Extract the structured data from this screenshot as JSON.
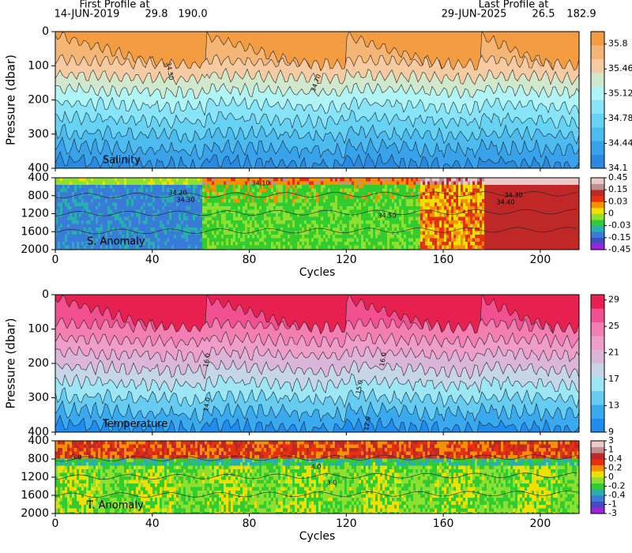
{
  "header": {
    "first_title": "First Profile at",
    "first_date": "14-JUN-2019",
    "first_lat": "29.8",
    "first_lon": "190.0",
    "last_title": "Last Profile at",
    "last_date": "29-JUN-2025",
    "last_lat": "26.5",
    "last_lon": "182.9"
  },
  "chart_data": [
    {
      "type": "contour",
      "label": "Salinity",
      "ylabel": "Pressure (dbar)",
      "ylim": [
        0,
        400
      ],
      "yticks": [
        0,
        100,
        200,
        300,
        400
      ],
      "xlim": [
        0,
        216
      ],
      "xticks": [
        0,
        40,
        80,
        120,
        160,
        200
      ],
      "colorbar": {
        "colors": [
          "#2a8ae0",
          "#38a2ea",
          "#4cbcf0",
          "#66d2f4",
          "#88e4f8",
          "#b0f4f6",
          "#d2e8cc",
          "#f6cba2",
          "#f5b575",
          "#f49c42"
        ],
        "ticks": [
          34.1,
          34.44,
          34.78,
          35.12,
          35.46,
          35.8
        ]
      },
      "annotations": [
        "34.50",
        "34.70",
        "34.50",
        "34.40"
      ]
    },
    {
      "type": "anomaly",
      "label": "S. Anomaly",
      "ylim": [
        400,
        2000
      ],
      "yticks": [
        400,
        800,
        1200,
        1600,
        2000
      ],
      "xlim": [
        0,
        216
      ],
      "xticks": [
        0,
        40,
        80,
        120,
        160,
        200
      ],
      "xlabel": "Cycles",
      "colorbar": {
        "colors": [
          "#a020e0",
          "#4a48c4",
          "#3a7ad8",
          "#28b0b0",
          "#30cc30",
          "#8ee030",
          "#f0e000",
          "#f59000",
          "#e83010",
          "#c02828",
          "#c09090",
          "#ecc8c8"
        ],
        "ticks": [
          -0.45,
          -0.15,
          -0.03,
          0,
          0.03,
          0.15,
          0.45
        ]
      },
      "annotations": [
        "34.10",
        "34.20",
        "34.30",
        "34.50",
        "34.30",
        "34.40"
      ]
    },
    {
      "type": "contour",
      "label": "Temperature",
      "ylabel": "Pressure (dbar)",
      "ylim": [
        0,
        400
      ],
      "yticks": [
        0,
        100,
        200,
        300,
        400
      ],
      "xlim": [
        0,
        216
      ],
      "xticks": [
        0,
        40,
        80,
        120,
        160,
        200
      ],
      "colorbar": {
        "colors": [
          "#1e8cf0",
          "#3aaaf0",
          "#66ccf2",
          "#9ce6f6",
          "#c6d6e8",
          "#dcb6d8",
          "#ee9ec8",
          "#f27eb2",
          "#f25090",
          "#e82050"
        ],
        "ticks": [
          9,
          13,
          17,
          21,
          25,
          29
        ]
      },
      "annotations": [
        "16.0",
        "14.0",
        "16.0",
        "15.0",
        "12.0"
      ]
    },
    {
      "type": "anomaly",
      "label": "T. Anomaly",
      "ylim": [
        400,
        2000
      ],
      "yticks": [
        400,
        800,
        1200,
        1600,
        2000
      ],
      "xlim": [
        0,
        216
      ],
      "xticks": [
        0,
        40,
        80,
        120,
        160,
        200
      ],
      "xlabel": "Cycles",
      "colorbar": {
        "colors": [
          "#a020e0",
          "#4a48c4",
          "#3a7ad8",
          "#28b0b0",
          "#30cc30",
          "#8ee030",
          "#f0e000",
          "#f59000",
          "#e83010",
          "#c02828",
          "#c09090",
          "#ecc8c8"
        ],
        "ticks": [
          -3,
          -1,
          -0.4,
          -0.2,
          0,
          0.2,
          0.4,
          1,
          3
        ]
      },
      "annotations": [
        "5.0",
        "4.0",
        "3.0"
      ]
    }
  ]
}
